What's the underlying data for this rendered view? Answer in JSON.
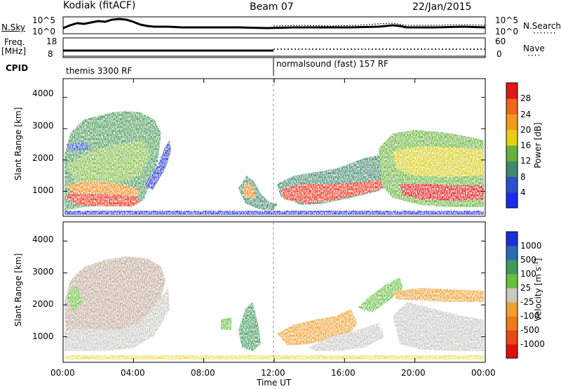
{
  "header": {
    "title": "Kodiak (fitACF)",
    "beam": "Beam 07",
    "date": "22/Jan/2015"
  },
  "noise_panel": {
    "left_label": "N.Sky",
    "right_label": "N.Search",
    "ticks_left": [
      "10^5",
      "10^0"
    ],
    "ticks_right": [
      "10^5",
      "10^0"
    ]
  },
  "freq_panel": {
    "left_label_top": "Freq.",
    "left_label_unit": "[MHz]",
    "right_label": "Nave",
    "ticks_left": [
      "18",
      "8"
    ],
    "ticks_right": [
      "60",
      "0"
    ]
  },
  "cpid": {
    "label": "CPID",
    "segments": [
      {
        "name": "themis 3300 RF",
        "start": "00:00"
      },
      {
        "name": "normalsound (fast) 157 RF",
        "start": "12:00"
      }
    ]
  },
  "x_axis": {
    "label": "Time UT",
    "ticks": [
      "00:00",
      "04:00",
      "08:00",
      "12:00",
      "16:00",
      "20:00",
      "00:00"
    ]
  },
  "chart_data": [
    {
      "type": "heatmap",
      "title": "",
      "xlabel": "Time UT",
      "ylabel": "Slant Range [km]",
      "yticks": [
        "1000",
        "2000",
        "3000",
        "4000"
      ],
      "ylim": [
        200,
        4600
      ],
      "colorbar": {
        "label": "Power [dB]",
        "ticks": [
          "4",
          "8",
          "12",
          "16",
          "20",
          "24",
          "28"
        ],
        "colors": [
          "#1a2cf0",
          "#2a52c8",
          "#3f8a6a",
          "#66b23a",
          "#e8d010",
          "#f39a1c",
          "#f0641c",
          "#e01818"
        ]
      }
    },
    {
      "type": "heatmap",
      "title": "",
      "xlabel": "Time UT",
      "ylabel": "Slant Range [km]",
      "yticks": [
        "1000",
        "2000",
        "3000",
        "4000"
      ],
      "ylim": [
        200,
        4600
      ],
      "colorbar": {
        "label": "Velocity",
        "unit": "[m s",
        "unit_exp": "-1",
        "unit_end": "]",
        "ticks": [
          "1000",
          "500",
          "100",
          "25",
          "-25",
          "-100",
          "-500",
          "-1000"
        ],
        "colors": [
          "#1c2ed8",
          "#2d6ab4",
          "#3f9a5c",
          "#66c040",
          "#c8c8c0",
          "#f0a030",
          "#f07a18",
          "#e84818",
          "#e01010"
        ]
      }
    }
  ]
}
